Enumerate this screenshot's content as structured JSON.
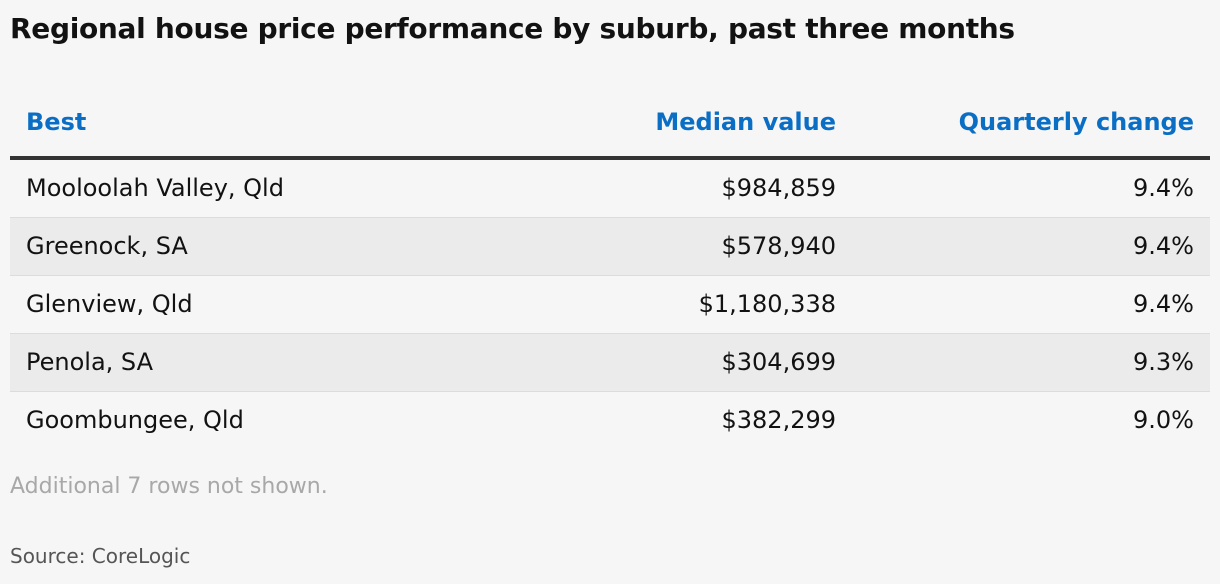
{
  "title": "Regional house price performance by suburb, past three months",
  "chart_data": {
    "type": "table",
    "title": "Regional house price performance by suburb, past three months",
    "columns": [
      "Best",
      "Median value",
      "Quarterly change"
    ],
    "rows": [
      {
        "suburb": "Mooloolah Valley, Qld",
        "median_value": "$984,859",
        "quarterly_change": "9.4%"
      },
      {
        "suburb": "Greenock, SA",
        "median_value": "$578,940",
        "quarterly_change": "9.4%"
      },
      {
        "suburb": "Glenview, Qld",
        "median_value": "$1,180,338",
        "quarterly_change": "9.4%"
      },
      {
        "suburb": "Penola, SA",
        "median_value": "$304,699",
        "quarterly_change": "9.3%"
      },
      {
        "suburb": "Goombungee, Qld",
        "median_value": "$382,299",
        "quarterly_change": "9.0%"
      }
    ],
    "note": "Additional 7 rows not shown.",
    "source": "Source: CoreLogic"
  },
  "colors": {
    "header_text": "#0b6ec5",
    "background": "#f6f6f6",
    "shaded_row": "#ebebeb"
  }
}
